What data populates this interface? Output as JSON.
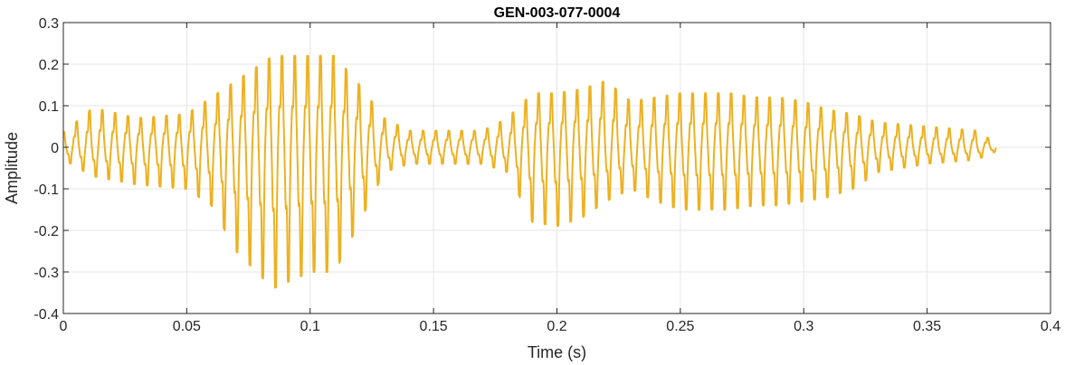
{
  "chart_data": {
    "type": "line",
    "title": "GEN-003-077-0004",
    "xlabel": "Time (s)",
    "ylabel": "Amplitude",
    "xlim": [
      0,
      0.4
    ],
    "ylim": [
      -0.4,
      0.3
    ],
    "xticks": [
      0,
      0.05,
      0.1,
      0.15,
      0.2,
      0.25,
      0.3,
      0.35,
      0.4
    ],
    "xtick_labels": [
      "0",
      "0.05",
      "0.1",
      "0.15",
      "0.2",
      "0.25",
      "0.3",
      "0.35",
      "0.4"
    ],
    "yticks": [
      -0.4,
      -0.3,
      -0.2,
      -0.1,
      0,
      0.1,
      0.2,
      0.3
    ],
    "ytick_labels": [
      "-0.4",
      "-0.3",
      "-0.2",
      "-0.1",
      "0",
      "0.1",
      "0.2",
      "0.3"
    ],
    "grid": true,
    "line_color": "#EDB120",
    "series": [
      {
        "values_description_omitted": true,
        "duration_s": 0.378,
        "envelope": {
          "t": [
            0,
            0.012,
            0.03,
            0.05,
            0.06,
            0.07,
            0.085,
            0.1,
            0.11,
            0.12,
            0.13,
            0.14,
            0.15,
            0.17,
            0.18,
            0.19,
            0.2,
            0.21,
            0.22,
            0.23,
            0.24,
            0.25,
            0.26,
            0.27,
            0.28,
            0.29,
            0.3,
            0.31,
            0.32,
            0.33,
            0.35,
            0.37,
            0.378
          ],
          "max": [
            0.035,
            0.095,
            0.07,
            0.08,
            0.12,
            0.16,
            0.22,
            0.22,
            0.22,
            0.15,
            0.07,
            0.04,
            0.04,
            0.04,
            0.07,
            0.13,
            0.13,
            0.14,
            0.16,
            0.11,
            0.12,
            0.13,
            0.13,
            0.13,
            0.12,
            0.12,
            0.11,
            0.09,
            0.08,
            0.06,
            0.05,
            0.04,
            0.01
          ],
          "min": [
            -0.03,
            -0.07,
            -0.09,
            -0.1,
            -0.14,
            -0.25,
            -0.34,
            -0.3,
            -0.3,
            -0.18,
            -0.06,
            -0.04,
            -0.04,
            -0.04,
            -0.06,
            -0.18,
            -0.19,
            -0.17,
            -0.13,
            -0.1,
            -0.13,
            -0.15,
            -0.15,
            -0.15,
            -0.14,
            -0.14,
            -0.13,
            -0.12,
            -0.1,
            -0.06,
            -0.04,
            -0.03,
            -0.01
          ]
        },
        "pitch_period_s": 0.0052
      }
    ]
  }
}
